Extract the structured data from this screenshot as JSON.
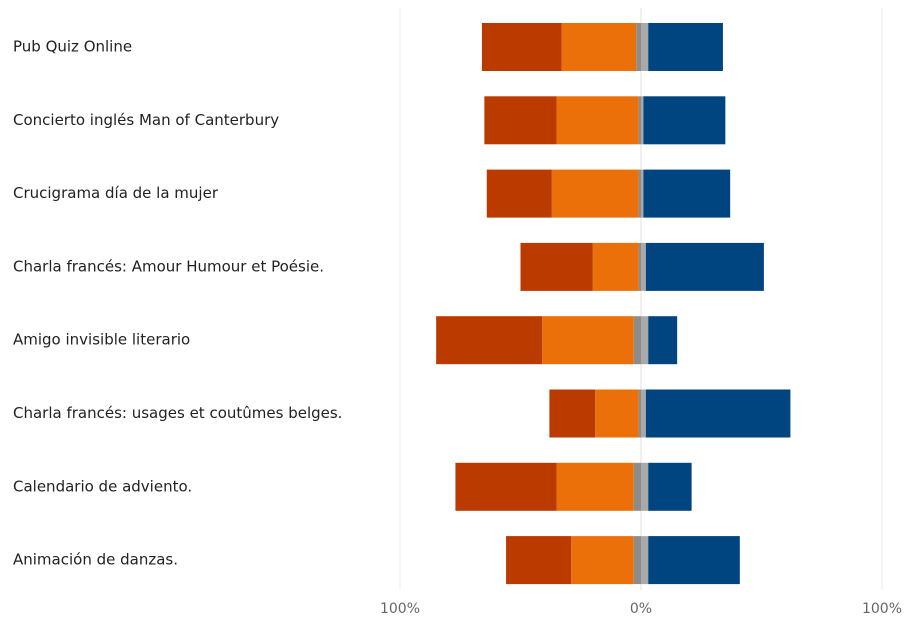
{
  "chart_data": {
    "type": "bar",
    "orientation": "horizontal-diverging",
    "stacked": true,
    "categories": [
      "Pub Quiz Online",
      "Concierto inglés Man of Canterbury",
      "Crucigrama día de la mujer",
      "Charla francés: Amour Humour et Poésie.",
      "Amigo invisible literario",
      "Charla francés: usages et coutûmes belges.",
      "Calendario de adviento.",
      "Animación de danzas."
    ],
    "series": [
      {
        "color": "#bb3a00",
        "side": "negative",
        "values": [
          33,
          30,
          27,
          30,
          44,
          19,
          42,
          27
        ]
      },
      {
        "color": "#eb7009",
        "side": "negative",
        "values": [
          31,
          34,
          36,
          19,
          38,
          18,
          32,
          26
        ]
      },
      {
        "color": "#8c8c8c",
        "side": "negative",
        "values": [
          2,
          1,
          1,
          1,
          3,
          1,
          3,
          3
        ]
      },
      {
        "color": "#a9a9a9",
        "side": "positive",
        "values": [
          3,
          1,
          1,
          2,
          3,
          2,
          3,
          3
        ]
      },
      {
        "color": "#004480",
        "side": "positive",
        "values": [
          31,
          34,
          36,
          49,
          12,
          60,
          18,
          38
        ]
      }
    ],
    "xlim": [
      -100,
      100
    ],
    "xticks": [
      {
        "value": -100,
        "label": "100%"
      },
      {
        "value": 0,
        "label": "0%"
      },
      {
        "value": 100,
        "label": "100%"
      }
    ],
    "grid": true
  }
}
